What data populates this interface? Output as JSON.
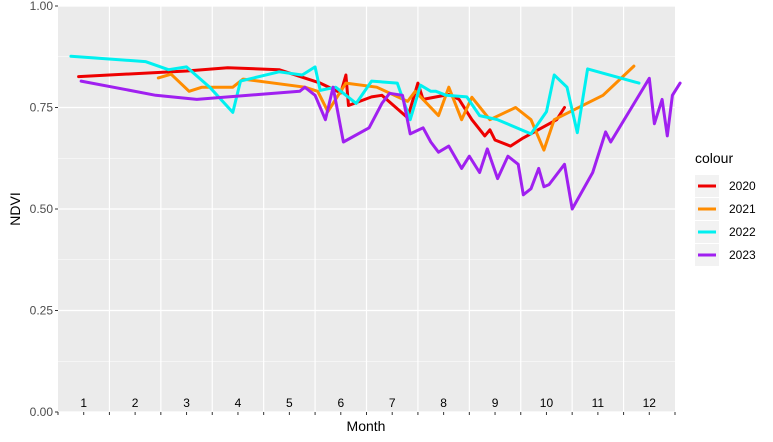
{
  "chart_data": {
    "type": "line",
    "xlabel": "Month",
    "ylabel": "NDVI",
    "xlim": [
      0.5,
      12.5
    ],
    "ylim": [
      0,
      1
    ],
    "y_ticks": [
      "0.00",
      "0.25",
      "0.50",
      "0.75",
      "1.00"
    ],
    "y_tick_values": [
      0,
      0.25,
      0.5,
      0.75,
      1.0
    ],
    "x_ticks": [
      "1",
      "2",
      "3",
      "4",
      "5",
      "6",
      "7",
      "8",
      "9",
      "10",
      "11",
      "12"
    ],
    "legend_title": "colour",
    "legend_position": "right",
    "grid": true,
    "series": [
      {
        "name": "2020",
        "color": "#ee0000",
        "points": [
          [
            0.9,
            0.826
          ],
          [
            3.0,
            0.84
          ],
          [
            3.8,
            0.848
          ],
          [
            4.8,
            0.843
          ],
          [
            5.6,
            0.81
          ],
          [
            6.0,
            0.786
          ],
          [
            6.1,
            0.83
          ],
          [
            6.15,
            0.755
          ],
          [
            6.6,
            0.776
          ],
          [
            6.8,
            0.78
          ],
          [
            7.3,
            0.725
          ],
          [
            7.5,
            0.81
          ],
          [
            7.6,
            0.77
          ],
          [
            8.1,
            0.782
          ],
          [
            8.3,
            0.77
          ],
          [
            8.55,
            0.72
          ],
          [
            8.8,
            0.68
          ],
          [
            8.9,
            0.695
          ],
          [
            9.0,
            0.67
          ],
          [
            9.3,
            0.655
          ],
          [
            9.55,
            0.675
          ],
          [
            10.2,
            0.72
          ],
          [
            10.35,
            0.75
          ]
        ]
      },
      {
        "name": "2021",
        "color": "#ff8c00",
        "points": [
          [
            2.45,
            0.823
          ],
          [
            2.7,
            0.832
          ],
          [
            3.05,
            0.79
          ],
          [
            3.3,
            0.8
          ],
          [
            3.9,
            0.8
          ],
          [
            4.1,
            0.82
          ],
          [
            5.3,
            0.8
          ],
          [
            5.55,
            0.79
          ],
          [
            5.75,
            0.74
          ],
          [
            6.1,
            0.81
          ],
          [
            6.7,
            0.8
          ],
          [
            7.3,
            0.765
          ],
          [
            7.45,
            0.79
          ],
          [
            7.9,
            0.73
          ],
          [
            8.1,
            0.8
          ],
          [
            8.35,
            0.72
          ],
          [
            8.55,
            0.775
          ],
          [
            8.9,
            0.72
          ],
          [
            9.4,
            0.75
          ],
          [
            9.7,
            0.72
          ],
          [
            9.95,
            0.645
          ],
          [
            10.15,
            0.72
          ],
          [
            11.1,
            0.78
          ],
          [
            11.7,
            0.852
          ]
        ]
      },
      {
        "name": "2022",
        "color": "#00f0f0",
        "points": [
          [
            0.75,
            0.876
          ],
          [
            2.2,
            0.863
          ],
          [
            2.65,
            0.843
          ],
          [
            3.0,
            0.85
          ],
          [
            3.45,
            0.8
          ],
          [
            3.9,
            0.738
          ],
          [
            4.05,
            0.815
          ],
          [
            4.8,
            0.838
          ],
          [
            5.25,
            0.83
          ],
          [
            5.5,
            0.85
          ],
          [
            5.6,
            0.792
          ],
          [
            5.9,
            0.8
          ],
          [
            6.3,
            0.76
          ],
          [
            6.6,
            0.815
          ],
          [
            7.1,
            0.81
          ],
          [
            7.35,
            0.72
          ],
          [
            7.55,
            0.805
          ],
          [
            7.75,
            0.79
          ],
          [
            7.85,
            0.79
          ],
          [
            8.05,
            0.78
          ],
          [
            8.45,
            0.776
          ],
          [
            8.7,
            0.73
          ],
          [
            9.05,
            0.72
          ],
          [
            9.7,
            0.685
          ],
          [
            10.0,
            0.74
          ],
          [
            10.15,
            0.83
          ],
          [
            10.4,
            0.8
          ],
          [
            10.6,
            0.688
          ],
          [
            10.8,
            0.845
          ],
          [
            11.8,
            0.81
          ]
        ]
      },
      {
        "name": "2023",
        "color": "#a020f0",
        "points": [
          [
            0.95,
            0.815
          ],
          [
            2.4,
            0.78
          ],
          [
            3.2,
            0.77
          ],
          [
            4.4,
            0.782
          ],
          [
            5.2,
            0.79
          ],
          [
            5.3,
            0.8
          ],
          [
            5.5,
            0.78
          ],
          [
            5.7,
            0.72
          ],
          [
            5.85,
            0.8
          ],
          [
            6.05,
            0.665
          ],
          [
            6.55,
            0.7
          ],
          [
            6.8,
            0.76
          ],
          [
            6.95,
            0.785
          ],
          [
            7.2,
            0.78
          ],
          [
            7.35,
            0.685
          ],
          [
            7.6,
            0.7
          ],
          [
            7.75,
            0.665
          ],
          [
            7.9,
            0.64
          ],
          [
            8.1,
            0.655
          ],
          [
            8.35,
            0.6
          ],
          [
            8.5,
            0.63
          ],
          [
            8.7,
            0.59
          ],
          [
            8.85,
            0.648
          ],
          [
            9.05,
            0.575
          ],
          [
            9.25,
            0.63
          ],
          [
            9.45,
            0.61
          ],
          [
            9.55,
            0.535
          ],
          [
            9.7,
            0.55
          ],
          [
            9.85,
            0.6
          ],
          [
            9.95,
            0.555
          ],
          [
            10.05,
            0.56
          ],
          [
            10.35,
            0.61
          ],
          [
            10.5,
            0.5
          ],
          [
            10.9,
            0.59
          ],
          [
            11.15,
            0.69
          ],
          [
            11.25,
            0.665
          ],
          [
            12.0,
            0.822
          ],
          [
            12.1,
            0.71
          ],
          [
            12.25,
            0.77
          ],
          [
            12.35,
            0.68
          ],
          [
            12.45,
            0.78
          ],
          [
            12.6,
            0.81
          ]
        ]
      }
    ]
  }
}
